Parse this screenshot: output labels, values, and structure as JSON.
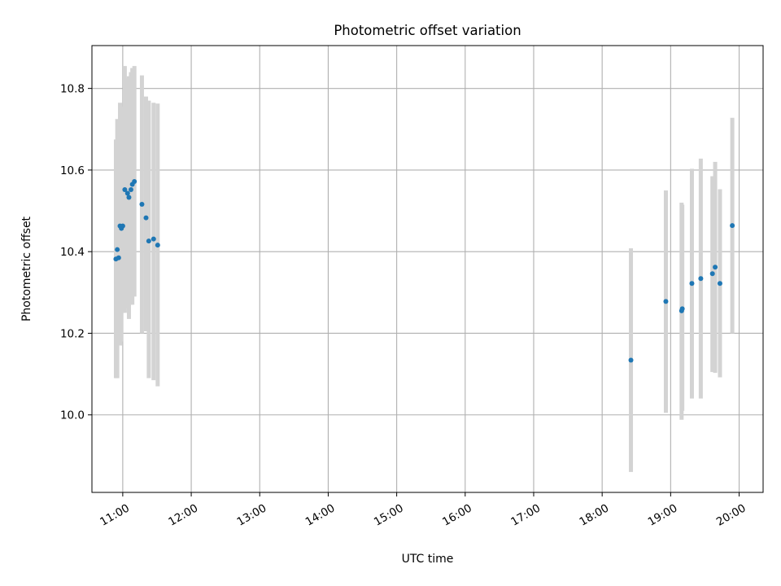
{
  "chart_data": {
    "type": "scatter",
    "title": "Photometric offset variation",
    "xlabel": "UTC time",
    "ylabel": "Photometric offset",
    "x_unit": "hours UTC",
    "xlim": [
      10.55,
      20.35
    ],
    "ylim": [
      9.81,
      10.905
    ],
    "x_ticks": [
      {
        "value": 11,
        "label": "11:00"
      },
      {
        "value": 12,
        "label": "12:00"
      },
      {
        "value": 13,
        "label": "13:00"
      },
      {
        "value": 14,
        "label": "14:00"
      },
      {
        "value": 15,
        "label": "15:00"
      },
      {
        "value": 16,
        "label": "16:00"
      },
      {
        "value": 17,
        "label": "17:00"
      },
      {
        "value": 18,
        "label": "18:00"
      },
      {
        "value": 19,
        "label": "19:00"
      },
      {
        "value": 20,
        "label": "20:00"
      }
    ],
    "y_ticks": [
      {
        "value": 10.0,
        "label": "10.0"
      },
      {
        "value": 10.2,
        "label": "10.2"
      },
      {
        "value": 10.4,
        "label": "10.4"
      },
      {
        "value": 10.6,
        "label": "10.6"
      },
      {
        "value": 10.8,
        "label": "10.8"
      }
    ],
    "grid": true,
    "colors": {
      "point": "#1f77b4",
      "errorbar": "#d3d3d3",
      "grid": "#b0b0b0"
    },
    "points": [
      {
        "x": 10.9,
        "y": 10.382,
        "ylow": 10.09,
        "yhigh": 10.675
      },
      {
        "x": 10.92,
        "y": 10.405,
        "ylow": 10.09,
        "yhigh": 10.725
      },
      {
        "x": 10.94,
        "y": 10.385,
        "ylow": 10.17,
        "yhigh": 10.62
      },
      {
        "x": 10.96,
        "y": 10.463,
        "ylow": 10.17,
        "yhigh": 10.765
      },
      {
        "x": 10.98,
        "y": 10.457,
        "ylow": 10.18,
        "yhigh": 10.74
      },
      {
        "x": 11.0,
        "y": 10.463,
        "ylow": 10.25,
        "yhigh": 10.755
      },
      {
        "x": 11.03,
        "y": 10.552,
        "ylow": 10.25,
        "yhigh": 10.855
      },
      {
        "x": 11.07,
        "y": 10.543,
        "ylow": 10.26,
        "yhigh": 10.825
      },
      {
        "x": 11.09,
        "y": 10.533,
        "ylow": 10.235,
        "yhigh": 10.83
      },
      {
        "x": 11.12,
        "y": 10.552,
        "ylow": 10.27,
        "yhigh": 10.84
      },
      {
        "x": 11.14,
        "y": 10.565,
        "ylow": 10.27,
        "yhigh": 10.85
      },
      {
        "x": 11.17,
        "y": 10.572,
        "ylow": 10.29,
        "yhigh": 10.855
      },
      {
        "x": 11.28,
        "y": 10.516,
        "ylow": 10.2,
        "yhigh": 10.832
      },
      {
        "x": 11.34,
        "y": 10.483,
        "ylow": 10.205,
        "yhigh": 10.78
      },
      {
        "x": 11.38,
        "y": 10.426,
        "ylow": 10.09,
        "yhigh": 10.77
      },
      {
        "x": 11.45,
        "y": 10.431,
        "ylow": 10.085,
        "yhigh": 10.765
      },
      {
        "x": 11.51,
        "y": 10.416,
        "ylow": 10.07,
        "yhigh": 10.763
      },
      {
        "x": 18.42,
        "y": 10.134,
        "ylow": 9.86,
        "yhigh": 10.408
      },
      {
        "x": 18.93,
        "y": 10.278,
        "ylow": 10.005,
        "yhigh": 10.55
      },
      {
        "x": 19.16,
        "y": 10.255,
        "ylow": 9.988,
        "yhigh": 10.52
      },
      {
        "x": 19.17,
        "y": 10.26,
        "ylow": 10.01,
        "yhigh": 10.515
      },
      {
        "x": 19.31,
        "y": 10.322,
        "ylow": 10.04,
        "yhigh": 10.603
      },
      {
        "x": 19.44,
        "y": 10.334,
        "ylow": 10.04,
        "yhigh": 10.628
      },
      {
        "x": 19.61,
        "y": 10.346,
        "ylow": 10.105,
        "yhigh": 10.585
      },
      {
        "x": 19.65,
        "y": 10.362,
        "ylow": 10.103,
        "yhigh": 10.62
      },
      {
        "x": 19.72,
        "y": 10.322,
        "ylow": 10.092,
        "yhigh": 10.553
      },
      {
        "x": 19.9,
        "y": 10.464,
        "ylow": 10.2,
        "yhigh": 10.728
      }
    ]
  }
}
